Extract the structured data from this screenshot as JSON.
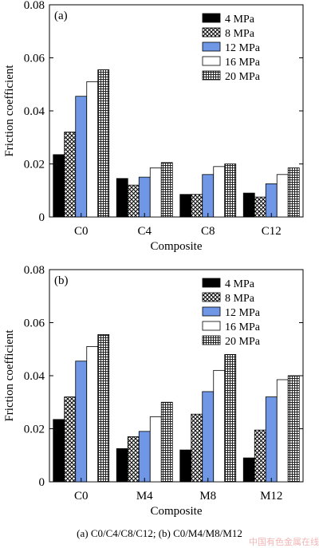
{
  "caption": "(a) C0/C4/C8/C12; (b) C0/M4/M8/M12",
  "watermark": "中国有色金属在线",
  "chart_data": [
    {
      "type": "bar",
      "panel_label": "(a)",
      "xlabel": "Composite",
      "ylabel": "Friction coefficient",
      "ylim": [
        0,
        0.08
      ],
      "yticks": [
        0,
        0.02,
        0.04,
        0.06,
        0.08
      ],
      "ytick_labels": [
        "0",
        "0.02",
        "0.04",
        "0.06",
        "0.08"
      ],
      "categories": [
        "C0",
        "C4",
        "C8",
        "C12"
      ],
      "legend_position": "top-right",
      "grid": false,
      "series": [
        {
          "name": "4 MPa",
          "pattern": "solid-black",
          "values": [
            0.0235,
            0.0145,
            0.0085,
            0.009
          ]
        },
        {
          "name": "8 MPa",
          "pattern": "crosshatch",
          "values": [
            0.032,
            0.012,
            0.0085,
            0.0075
          ]
        },
        {
          "name": "12 MPa",
          "pattern": "solid-blue",
          "color": "#6f97e6",
          "values": [
            0.0455,
            0.015,
            0.016,
            0.0125
          ]
        },
        {
          "name": "16 MPa",
          "pattern": "white",
          "values": [
            0.051,
            0.0185,
            0.019,
            0.016
          ]
        },
        {
          "name": "20 MPa",
          "pattern": "dense-grid",
          "values": [
            0.0555,
            0.0205,
            0.02,
            0.0185
          ]
        }
      ]
    },
    {
      "type": "bar",
      "panel_label": "(b)",
      "xlabel": "Composite",
      "ylabel": "Friction coefficient",
      "ylim": [
        0,
        0.08
      ],
      "yticks": [
        0,
        0.02,
        0.04,
        0.06,
        0.08
      ],
      "ytick_labels": [
        "0",
        "0.02",
        "0.04",
        "0.06",
        "0.08"
      ],
      "categories": [
        "C0",
        "M4",
        "M8",
        "M12"
      ],
      "legend_position": "top-right",
      "grid": false,
      "series": [
        {
          "name": "4 MPa",
          "pattern": "solid-black",
          "values": [
            0.0235,
            0.0125,
            0.012,
            0.009
          ]
        },
        {
          "name": "8 MPa",
          "pattern": "crosshatch",
          "values": [
            0.032,
            0.017,
            0.0255,
            0.0195
          ]
        },
        {
          "name": "12 MPa",
          "pattern": "solid-blue",
          "color": "#6f97e6",
          "values": [
            0.0455,
            0.019,
            0.034,
            0.032
          ]
        },
        {
          "name": "16 MPa",
          "pattern": "white",
          "values": [
            0.051,
            0.0245,
            0.042,
            0.0385
          ]
        },
        {
          "name": "20 MPa",
          "pattern": "dense-grid",
          "values": [
            0.0555,
            0.03,
            0.048,
            0.04
          ]
        }
      ]
    }
  ]
}
